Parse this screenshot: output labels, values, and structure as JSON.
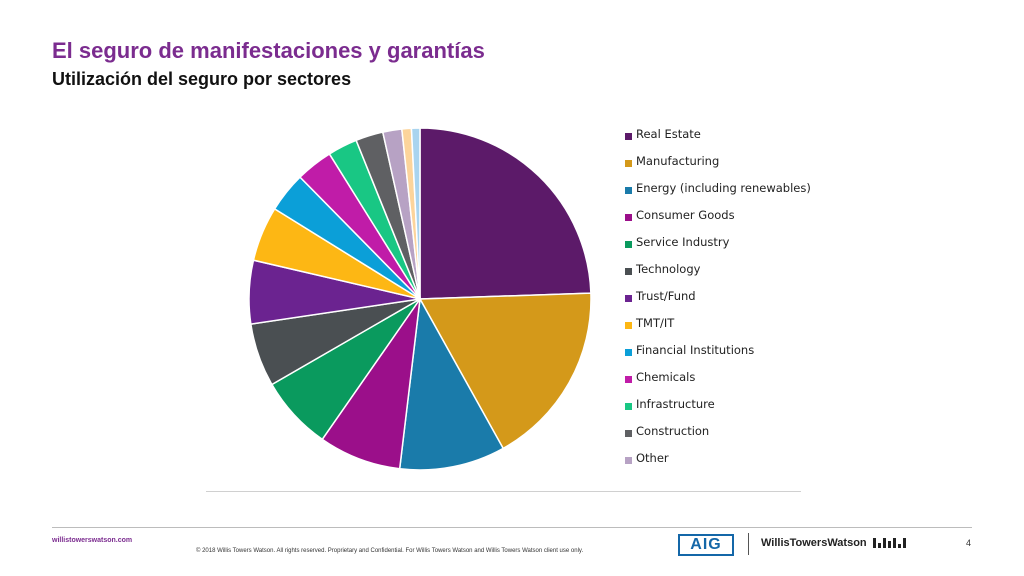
{
  "header": {
    "title": "El seguro de manifestaciones y garantías",
    "subtitle": "Utilización del seguro por sectores"
  },
  "chart_data": {
    "type": "pie",
    "legend_position": "right",
    "slices": [
      {
        "label": "Real Estate",
        "value": 24.5,
        "color": "#5C1A69"
      },
      {
        "label": "Manufacturing",
        "value": 17.5,
        "color": "#D4991A"
      },
      {
        "label": "Energy (including renewables)",
        "value": 10.0,
        "color": "#1A7BAA"
      },
      {
        "label": "Consumer Goods",
        "value": 7.8,
        "color": "#9B0F8A"
      },
      {
        "label": "Service Industry",
        "value": 7.0,
        "color": "#0A9A5E"
      },
      {
        "label": "Technology",
        "value": 6.0,
        "color": "#4A4F52"
      },
      {
        "label": "Trust/Fund",
        "value": 6.0,
        "color": "#6B2390"
      },
      {
        "label": "TMT/IT",
        "value": 5.2,
        "color": "#FDB714"
      },
      {
        "label": "Financial Institutions",
        "value": 3.8,
        "color": "#0B9FD8"
      },
      {
        "label": "Chemicals",
        "value": 3.5,
        "color": "#C01CA8"
      },
      {
        "label": "Infrastructure",
        "value": 2.8,
        "color": "#19C784"
      },
      {
        "label": "Construction",
        "value": 2.6,
        "color": "#5F6063"
      },
      {
        "label": "Other",
        "value": 1.8,
        "color": "#B7A2C4"
      },
      {
        "label": "",
        "value": 0.9,
        "color": "#FCD49B"
      },
      {
        "label": "",
        "value": 0.8,
        "color": "#A9D4EF"
      }
    ]
  },
  "footer": {
    "site": "willistowerswatson.com",
    "copyright": "© 2018 Willis Towers Watson. All rights reserved. Proprietary and Confidential. For Willis Towers Watson and Willis Towers Watson client use only.",
    "aig_logo": "AIG",
    "wtw_logo": "WillisTowersWatson",
    "page_number": "4"
  },
  "colors": {
    "title": "#7B2C8F",
    "aig_blue": "#1467A8"
  }
}
